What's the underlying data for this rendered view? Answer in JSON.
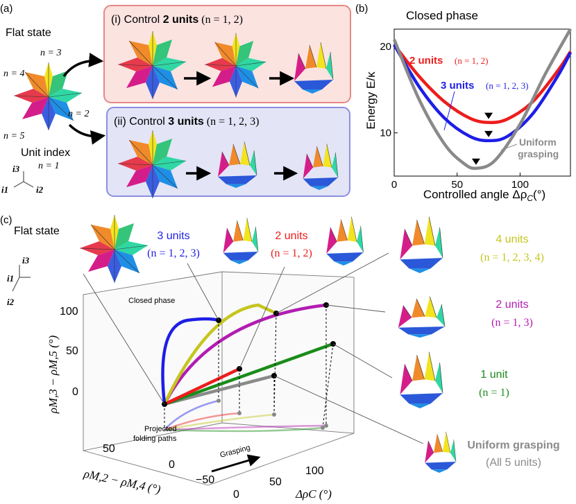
{
  "panel_a": {
    "label": "(a)",
    "flat_state": "Flat state",
    "unit_labels": [
      "n = 3",
      "n = 4",
      "n = 2",
      "n = 5"
    ],
    "unit_index": "Unit index",
    "unit_index_n": "n = 1",
    "axes": [
      "i3",
      "i1",
      "i2"
    ],
    "box_i": {
      "prefix": "(i) Control ",
      "bold": "2 units",
      "suffix": " (n = 1, 2)",
      "bg": "#fbe3e0",
      "border": "#e78883"
    },
    "box_ii": {
      "prefix": "(ii) Control ",
      "bold": "3 units",
      "suffix": " (n = 1, 2, 3)",
      "bg": "#e3e4f6",
      "border": "#8b8fe0"
    }
  },
  "panel_b": {
    "label": "(b)",
    "title": "Closed phase",
    "ylabel": "Energy E/κ",
    "xlabel": "Controlled angle Δρ",
    "xlabel_sub": "C",
    "xlabel_unit": "(°)",
    "legend": [
      {
        "name": "2 units",
        "detail": "(n = 1, 2)",
        "color": "#ee1c1c"
      },
      {
        "name": "3 units",
        "detail": "(n = 1, 2, 3)",
        "color": "#1e1ee6"
      },
      {
        "name": "Uniform grasping",
        "detail": "",
        "color": "#8a8a8a"
      }
    ]
  },
  "chart_data": {
    "type": "line",
    "title": "Closed phase",
    "xlabel": "Controlled angle ΔρC (°)",
    "ylabel": "Energy E/κ",
    "xlim": [
      0,
      140
    ],
    "ylim": [
      5,
      22
    ],
    "xticks": [
      0,
      50,
      100
    ],
    "yticks": [
      10,
      20
    ],
    "series": [
      {
        "name": "2 units (n = 1, 2)",
        "color": "#ee1c1c",
        "x": [
          0,
          20,
          40,
          60,
          75,
          90,
          110,
          130,
          140
        ],
        "y": [
          20.2,
          16.5,
          13.6,
          11.7,
          11.2,
          11.6,
          13.6,
          17.2,
          19.4
        ],
        "min": [
          75,
          11.2
        ]
      },
      {
        "name": "3 units (n = 1, 2, 3)",
        "color": "#1e1ee6",
        "x": [
          0,
          20,
          40,
          60,
          75,
          90,
          110,
          130,
          140
        ],
        "y": [
          20.2,
          15.3,
          11.7,
          9.6,
          9.1,
          9.6,
          12.2,
          16.6,
          19.3
        ],
        "min": [
          75,
          9.1
        ]
      },
      {
        "name": "Uniform grasping",
        "color": "#8a8a8a",
        "x": [
          0,
          20,
          40,
          55,
          65,
          80,
          100,
          120,
          140
        ],
        "y": [
          20.8,
          13.8,
          8.7,
          6.5,
          5.9,
          6.8,
          11.0,
          16.8,
          22.0
        ],
        "min": [
          65,
          5.9
        ]
      }
    ]
  },
  "panel_c": {
    "label": "(c)",
    "flat_state": "Flat state",
    "closed_phase": "Closed phase",
    "projected": [
      "Projected",
      "folding paths"
    ],
    "grasping": "Grasping",
    "zlabel": "ρM,3 − ρM,5 (°)",
    "ylabel": "ρM,2 − ρM,4 (°)",
    "xlabel": "ΔρC (°)",
    "zticks": [
      "100",
      "50",
      "0"
    ],
    "yticks": [
      "50",
      "0",
      "−50"
    ],
    "xticks": [
      "0",
      "50",
      "100"
    ],
    "legend": [
      {
        "name": "3 units",
        "detail": "(n = 1, 2, 3)",
        "color": "#1e1ee6"
      },
      {
        "name": "2 units",
        "detail": "(n = 1, 2)",
        "color": "#ee1c1c"
      },
      {
        "name": "4 units",
        "detail": "(n = 1, 2, 3, 4)",
        "color": "#c5c51f"
      },
      {
        "name": "2 units",
        "detail": "(n = 1, 3)",
        "color": "#b21cb2"
      },
      {
        "name": "1 unit",
        "detail": "(n = 1)",
        "color": "#1a8c1a"
      },
      {
        "name": "Uniform grasping",
        "detail": "(All 5 units)",
        "color": "#8a8a8a"
      }
    ]
  }
}
